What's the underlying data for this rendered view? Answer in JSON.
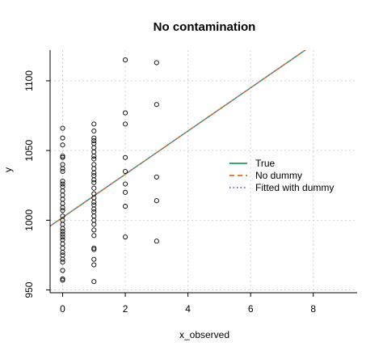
{
  "chart_data": {
    "type": "scatter",
    "title": "No contamination",
    "xlabel": "x_observed",
    "ylabel": "y",
    "xlim": [
      -0.4,
      9.4
    ],
    "ylim": [
      948,
      1122
    ],
    "x_ticks": [
      0,
      2,
      4,
      6,
      8
    ],
    "y_ticks": [
      950,
      1000,
      1050,
      1100
    ],
    "grid": true,
    "legend_position": "right",
    "points": [
      {
        "x": 0,
        "y": 1066
      },
      {
        "x": 0,
        "y": 1059
      },
      {
        "x": 0,
        "y": 1054
      },
      {
        "x": 0,
        "y": 1046
      },
      {
        "x": 0,
        "y": 1045
      },
      {
        "x": 0,
        "y": 1040
      },
      {
        "x": 0,
        "y": 1037
      },
      {
        "x": 0,
        "y": 1035
      },
      {
        "x": 0,
        "y": 1028
      },
      {
        "x": 0,
        "y": 1026
      },
      {
        "x": 0,
        "y": 1024
      },
      {
        "x": 0,
        "y": 1021
      },
      {
        "x": 0,
        "y": 1018
      },
      {
        "x": 0,
        "y": 1015
      },
      {
        "x": 0,
        "y": 1012
      },
      {
        "x": 0,
        "y": 1009
      },
      {
        "x": 0,
        "y": 1007
      },
      {
        "x": 0,
        "y": 1003
      },
      {
        "x": 0,
        "y": 1000
      },
      {
        "x": 0,
        "y": 997
      },
      {
        "x": 0,
        "y": 994
      },
      {
        "x": 0,
        "y": 992
      },
      {
        "x": 0,
        "y": 990
      },
      {
        "x": 0,
        "y": 988
      },
      {
        "x": 0,
        "y": 986
      },
      {
        "x": 0,
        "y": 983
      },
      {
        "x": 0,
        "y": 980
      },
      {
        "x": 0,
        "y": 977
      },
      {
        "x": 0,
        "y": 975
      },
      {
        "x": 0,
        "y": 972
      },
      {
        "x": 0,
        "y": 970
      },
      {
        "x": 0,
        "y": 964
      },
      {
        "x": 0,
        "y": 958
      },
      {
        "x": 0,
        "y": 957
      },
      {
        "x": 1,
        "y": 1069
      },
      {
        "x": 1,
        "y": 1064
      },
      {
        "x": 1,
        "y": 1059
      },
      {
        "x": 1,
        "y": 1057
      },
      {
        "x": 1,
        "y": 1055
      },
      {
        "x": 1,
        "y": 1052
      },
      {
        "x": 1,
        "y": 1049
      },
      {
        "x": 1,
        "y": 1046
      },
      {
        "x": 1,
        "y": 1044
      },
      {
        "x": 1,
        "y": 1040
      },
      {
        "x": 1,
        "y": 1037
      },
      {
        "x": 1,
        "y": 1034
      },
      {
        "x": 1,
        "y": 1032
      },
      {
        "x": 1,
        "y": 1029
      },
      {
        "x": 1,
        "y": 1027
      },
      {
        "x": 1,
        "y": 1023
      },
      {
        "x": 1,
        "y": 1019
      },
      {
        "x": 1,
        "y": 1016
      },
      {
        "x": 1,
        "y": 1013
      },
      {
        "x": 1,
        "y": 1011
      },
      {
        "x": 1,
        "y": 1008
      },
      {
        "x": 1,
        "y": 1006
      },
      {
        "x": 1,
        "y": 1003
      },
      {
        "x": 1,
        "y": 1000
      },
      {
        "x": 1,
        "y": 997
      },
      {
        "x": 1,
        "y": 993
      },
      {
        "x": 1,
        "y": 989
      },
      {
        "x": 1,
        "y": 980
      },
      {
        "x": 1,
        "y": 979
      },
      {
        "x": 1,
        "y": 972
      },
      {
        "x": 1,
        "y": 968
      },
      {
        "x": 1,
        "y": 956
      },
      {
        "x": 2,
        "y": 1115
      },
      {
        "x": 2,
        "y": 1077
      },
      {
        "x": 2,
        "y": 1069
      },
      {
        "x": 2,
        "y": 1045
      },
      {
        "x": 2,
        "y": 1035
      },
      {
        "x": 2,
        "y": 1026
      },
      {
        "x": 2,
        "y": 1020
      },
      {
        "x": 2,
        "y": 1010
      },
      {
        "x": 2,
        "y": 988
      },
      {
        "x": 3,
        "y": 1113
      },
      {
        "x": 3,
        "y": 1083
      },
      {
        "x": 3,
        "y": 1031
      },
      {
        "x": 3,
        "y": 1014
      },
      {
        "x": 3,
        "y": 985
      }
    ],
    "series": [
      {
        "name": "True",
        "style": "solid",
        "color": "#1a9e5a",
        "intercept": 1002,
        "slope": 15.5
      },
      {
        "name": "No dummy",
        "style": "dashed",
        "color": "#e8701e",
        "intercept": 1002,
        "slope": 15.5
      },
      {
        "name": "Fitted with dummy",
        "style": "dotted",
        "color": "#6a6ab8",
        "intercept": 1002,
        "slope": 15.5
      }
    ]
  }
}
